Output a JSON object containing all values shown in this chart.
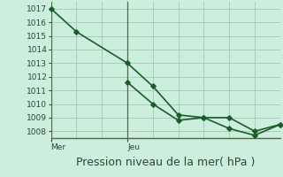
{
  "title": "Pression niveau de la mer( hPa )",
  "bg_color": "#cceedd",
  "grid_color": "#aaccbb",
  "line_color": "#1a5c2a",
  "vline_color": "#556644",
  "ylim": [
    1007.5,
    1017.5
  ],
  "xlim": [
    0.0,
    9.0
  ],
  "yticks": [
    1008,
    1009,
    1010,
    1011,
    1012,
    1013,
    1014,
    1015,
    1016,
    1017
  ],
  "xtick_positions": [
    0.0,
    3.0
  ],
  "xtick_labels": [
    "Mer",
    "Jeu"
  ],
  "vline_positions": [
    0.0,
    3.0
  ],
  "xgrid_positions": [
    0.0,
    1.0,
    2.0,
    3.0,
    4.0,
    5.0,
    6.0,
    7.0,
    8.0,
    9.0
  ],
  "line1_x": [
    0.0,
    1.0,
    3.0,
    4.0,
    5.0,
    6.0,
    7.0,
    8.0,
    9.0
  ],
  "line1_y": [
    1017.0,
    1015.3,
    1013.0,
    1011.3,
    1009.2,
    1009.0,
    1009.0,
    1008.0,
    1008.5
  ],
  "line2_x": [
    3.0,
    4.0,
    5.0,
    6.0,
    7.0,
    8.0,
    9.0
  ],
  "line2_y": [
    1011.6,
    1010.0,
    1008.8,
    1009.0,
    1008.2,
    1007.7,
    1008.5
  ],
  "marker": "D",
  "markersize": 2.8,
  "linewidth": 1.2,
  "title_fontsize": 9,
  "tick_fontsize": 6.5
}
